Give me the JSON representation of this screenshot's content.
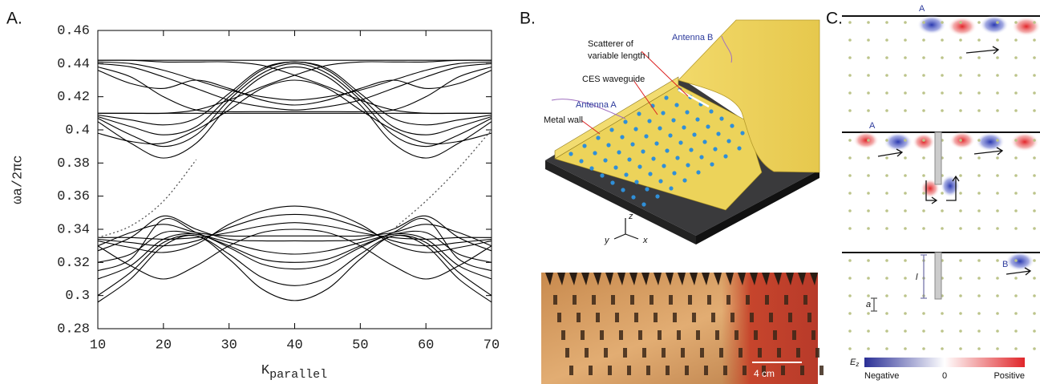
{
  "panel_labels": [
    "A.",
    "B.",
    "C."
  ],
  "chart_data": {
    "type": "line",
    "ylabel": "ωa/2πc",
    "xlabel": "K",
    "xlabel_sub": "parallel",
    "x": [
      10,
      15,
      20,
      25,
      30,
      35,
      40,
      45,
      50,
      55,
      60,
      65,
      70
    ],
    "xlim": [
      10,
      70
    ],
    "ylim": [
      0.28,
      0.46
    ],
    "xticks": [
      10,
      20,
      30,
      40,
      50,
      60,
      70
    ],
    "yticks": [
      0.28,
      0.3,
      0.32,
      0.34,
      0.36,
      0.38,
      0.4,
      0.42,
      0.44,
      0.46
    ],
    "series": [
      {
        "color": "#000000",
        "values": [
          0.442,
          0.442,
          0.442,
          0.442,
          0.442,
          0.442,
          0.442,
          0.442,
          0.442,
          0.442,
          0.442,
          0.442,
          0.442
        ]
      },
      {
        "color": "#000000",
        "values": [
          0.41,
          0.41,
          0.41,
          0.41,
          0.41,
          0.41,
          0.41,
          0.41,
          0.41,
          0.41,
          0.41,
          0.41,
          0.41
        ]
      },
      {
        "color": "#000000",
        "values": [
          0.405,
          0.392,
          0.383,
          0.392,
          0.415,
          0.432,
          0.438,
          0.432,
          0.415,
          0.392,
          0.383,
          0.392,
          0.405
        ]
      },
      {
        "color": "#000000",
        "values": [
          0.407,
          0.397,
          0.39,
          0.397,
          0.418,
          0.434,
          0.44,
          0.434,
          0.418,
          0.397,
          0.39,
          0.397,
          0.407
        ]
      },
      {
        "color": "#000000",
        "values": [
          0.408,
          0.402,
          0.397,
          0.402,
          0.42,
          0.436,
          0.441,
          0.436,
          0.42,
          0.402,
          0.397,
          0.402,
          0.408
        ]
      },
      {
        "color": "#000000",
        "values": [
          0.409,
          0.406,
          0.403,
          0.407,
          0.422,
          0.437,
          0.441,
          0.437,
          0.422,
          0.407,
          0.403,
          0.406,
          0.409
        ]
      },
      {
        "color": "#000000",
        "values": [
          0.44,
          0.438,
          0.432,
          0.425,
          0.418,
          0.414,
          0.412,
          0.414,
          0.418,
          0.425,
          0.432,
          0.438,
          0.44
        ]
      },
      {
        "color": "#000000",
        "values": [
          0.438,
          0.432,
          0.42,
          0.412,
          0.411,
          0.411,
          0.411,
          0.411,
          0.411,
          0.412,
          0.42,
          0.432,
          0.438
        ]
      },
      {
        "color": "#000000",
        "values": [
          0.436,
          0.428,
          0.425,
          0.43,
          0.425,
          0.418,
          0.415,
          0.418,
          0.425,
          0.43,
          0.425,
          0.428,
          0.436
        ]
      },
      {
        "color": "#000000",
        "values": [
          0.441,
          0.44,
          0.436,
          0.43,
          0.424,
          0.42,
          0.418,
          0.42,
          0.424,
          0.43,
          0.436,
          0.44,
          0.441
        ]
      },
      {
        "color": "#000000",
        "values": [
          0.41,
          0.41,
          0.41,
          0.412,
          0.418,
          0.426,
          0.433,
          0.439,
          0.441,
          0.441,
          0.441,
          0.442,
          0.442
        ]
      },
      {
        "color": "#000000",
        "values": [
          0.442,
          0.442,
          0.441,
          0.441,
          0.441,
          0.439,
          0.433,
          0.426,
          0.418,
          0.412,
          0.41,
          0.41,
          0.41
        ]
      },
      {
        "color": "#000000",
        "values": [
          0.398,
          0.393,
          0.392,
          0.4,
          0.412,
          0.425,
          0.43,
          0.425,
          0.412,
          0.4,
          0.392,
          0.393,
          0.398
        ]
      },
      {
        "color": "#000000",
        "values": [
          0.333,
          0.329,
          0.326,
          0.331,
          0.343,
          0.351,
          0.354,
          0.351,
          0.343,
          0.331,
          0.326,
          0.329,
          0.333
        ]
      },
      {
        "color": "#000000",
        "values": [
          0.334,
          0.332,
          0.33,
          0.333,
          0.341,
          0.347,
          0.349,
          0.347,
          0.341,
          0.333,
          0.33,
          0.332,
          0.334
        ]
      },
      {
        "color": "#000000",
        "values": [
          0.335,
          0.335,
          0.334,
          0.335,
          0.338,
          0.342,
          0.344,
          0.342,
          0.338,
          0.335,
          0.334,
          0.335,
          0.335
        ]
      },
      {
        "color": "#000000",
        "values": [
          0.296,
          0.31,
          0.33,
          0.336,
          0.322,
          0.304,
          0.297,
          0.304,
          0.322,
          0.336,
          0.33,
          0.31,
          0.296
        ]
      },
      {
        "color": "#000000",
        "values": [
          0.3,
          0.314,
          0.332,
          0.336,
          0.325,
          0.311,
          0.306,
          0.311,
          0.325,
          0.336,
          0.332,
          0.314,
          0.3
        ]
      },
      {
        "color": "#000000",
        "values": [
          0.31,
          0.318,
          0.334,
          0.337,
          0.329,
          0.319,
          0.316,
          0.319,
          0.329,
          0.337,
          0.334,
          0.318,
          0.31
        ]
      },
      {
        "color": "#000000",
        "values": [
          0.32,
          0.325,
          0.338,
          0.337,
          0.332,
          0.327,
          0.325,
          0.327,
          0.332,
          0.337,
          0.338,
          0.325,
          0.32
        ]
      },
      {
        "color": "#000000",
        "values": [
          0.327,
          0.335,
          0.348,
          0.34,
          0.334,
          0.333,
          0.333,
          0.333,
          0.334,
          0.34,
          0.348,
          0.335,
          0.327
        ]
      },
      {
        "color": "#000000",
        "values": [
          0.315,
          0.322,
          0.346,
          0.338,
          0.33,
          0.322,
          0.32,
          0.322,
          0.33,
          0.338,
          0.346,
          0.322,
          0.315
        ]
      },
      {
        "color": "#000000",
        "values": [
          0.33,
          0.338,
          0.343,
          0.338,
          0.336,
          0.336,
          0.336,
          0.336,
          0.336,
          0.338,
          0.343,
          0.338,
          0.33
        ]
      },
      {
        "color": "#000000",
        "values": [
          0.33,
          0.318,
          0.31,
          0.318,
          0.33,
          0.338,
          0.34,
          0.338,
          0.33,
          0.318,
          0.31,
          0.318,
          0.33
        ]
      },
      {
        "color": "#555555",
        "dashed": true,
        "values": [
          0.335,
          0.342,
          0.357,
          0.382,
          null,
          null,
          null,
          null,
          null,
          null,
          null,
          null,
          null
        ]
      },
      {
        "color": "#555555",
        "dashed": true,
        "values": [
          null,
          null,
          null,
          null,
          null,
          null,
          null,
          null,
          null,
          0.34,
          0.357,
          0.377,
          0.4
        ]
      }
    ]
  },
  "illustration": {
    "labels": {
      "scatterer": [
        "Scatterer of",
        "variable length l"
      ],
      "antenna_b": "Antenna B",
      "waveguide": "CES waveguide",
      "antenna_a": "Antenna A",
      "metal_wall": "Metal wall"
    },
    "axes": {
      "z": "z",
      "y": "y",
      "x": "x"
    },
    "scale": "4 cm"
  },
  "field_maps": {
    "labels": {
      "a_top": "A",
      "a_mid": "A",
      "b_bottom": "B",
      "length": "l",
      "lattice": "a"
    },
    "colorbar": {
      "title": "E",
      "title_sub": "z",
      "low": "Negative",
      "mid": "0",
      "high": "Positive"
    }
  }
}
